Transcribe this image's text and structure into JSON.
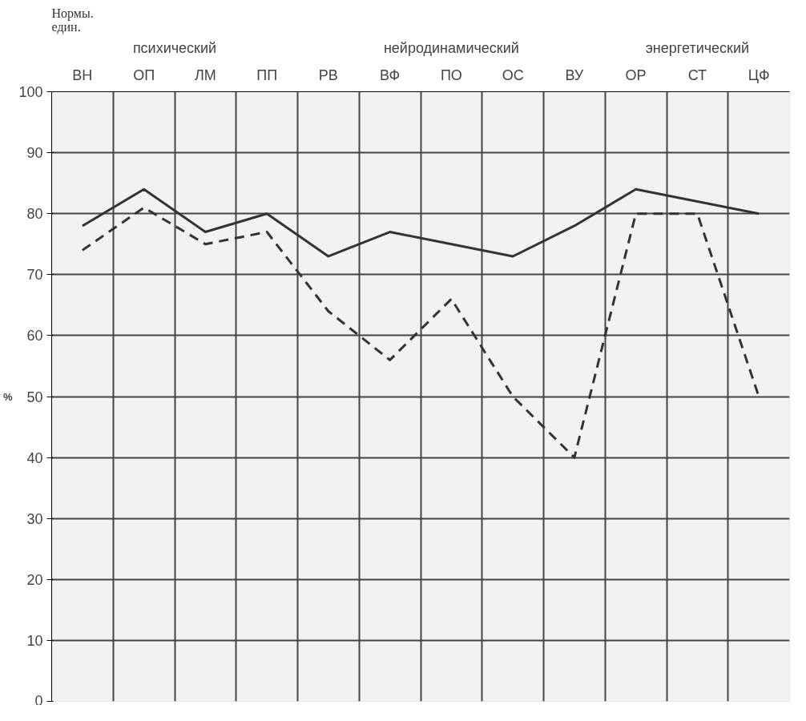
{
  "chart_data": {
    "type": "line",
    "title": "Нормы.\nедин.",
    "ylabel": "%",
    "categories": [
      "ВН",
      "ОП",
      "ЛМ",
      "ПП",
      "РВ",
      "ВФ",
      "ПО",
      "ОС",
      "ВУ",
      "ОР",
      "СТ",
      "ЦФ"
    ],
    "annotations": [
      "психический",
      "нейродинамический",
      "энергетический"
    ],
    "series": [
      {
        "color": "#333333",
        "line_style": "solid",
        "values": [
          78,
          84,
          77,
          80,
          73,
          77,
          75,
          73,
          78,
          84,
          82,
          80
        ]
      },
      {
        "color": "#333333",
        "line_style": "dashed",
        "values": [
          74,
          81,
          75,
          77,
          64,
          56,
          66,
          50,
          40,
          80,
          80,
          50
        ]
      }
    ],
    "ylim": [
      0,
      100
    ],
    "yticks": [
      0,
      10,
      20,
      30,
      40,
      50,
      60,
      70,
      80,
      90,
      100
    ],
    "grid": true,
    "marker": "none"
  }
}
